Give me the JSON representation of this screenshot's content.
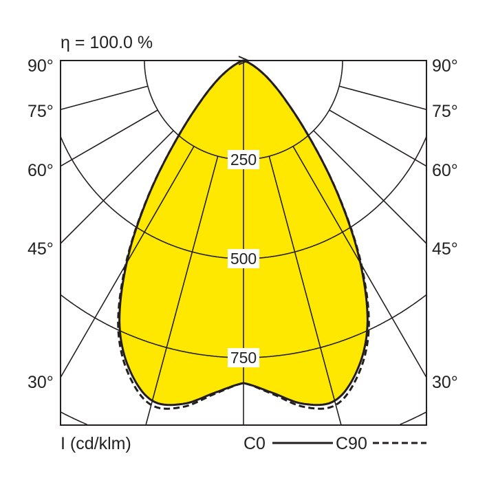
{
  "chart_data": {
    "type": "polar",
    "title": "η = 100.0 %",
    "unit_label": "I (cd/klm)",
    "radial_ticks": [
      250,
      500,
      750,
      1000
    ],
    "radial_tick_labels": [
      "250",
      "500",
      "750"
    ],
    "angle_tick_labels": [
      "90°",
      "75°",
      "60°",
      "45°",
      "30°"
    ],
    "angles_deg": [
      0,
      5,
      10,
      15,
      20,
      25,
      30,
      35,
      40,
      45,
      50,
      55,
      60,
      65,
      70,
      75,
      80,
      85,
      90
    ],
    "series": [
      {
        "name": "C0",
        "style": "solid",
        "values": [
          814,
          842,
          880,
          889,
          835,
          740,
          590,
          420,
          270,
          170,
          110,
          70,
          40,
          20,
          10,
          3,
          0,
          0,
          0
        ]
      },
      {
        "name": "C90",
        "style": "dashed",
        "values": [
          814,
          845,
          888,
          900,
          845,
          748,
          595,
          422,
          270,
          170,
          110,
          70,
          40,
          20,
          10,
          3,
          0,
          0,
          0
        ]
      }
    ],
    "fill_color": "#FFE800",
    "line_color": "#231F20",
    "rlim": [
      0,
      1000
    ],
    "grid": true,
    "legend": "bottom-right"
  }
}
